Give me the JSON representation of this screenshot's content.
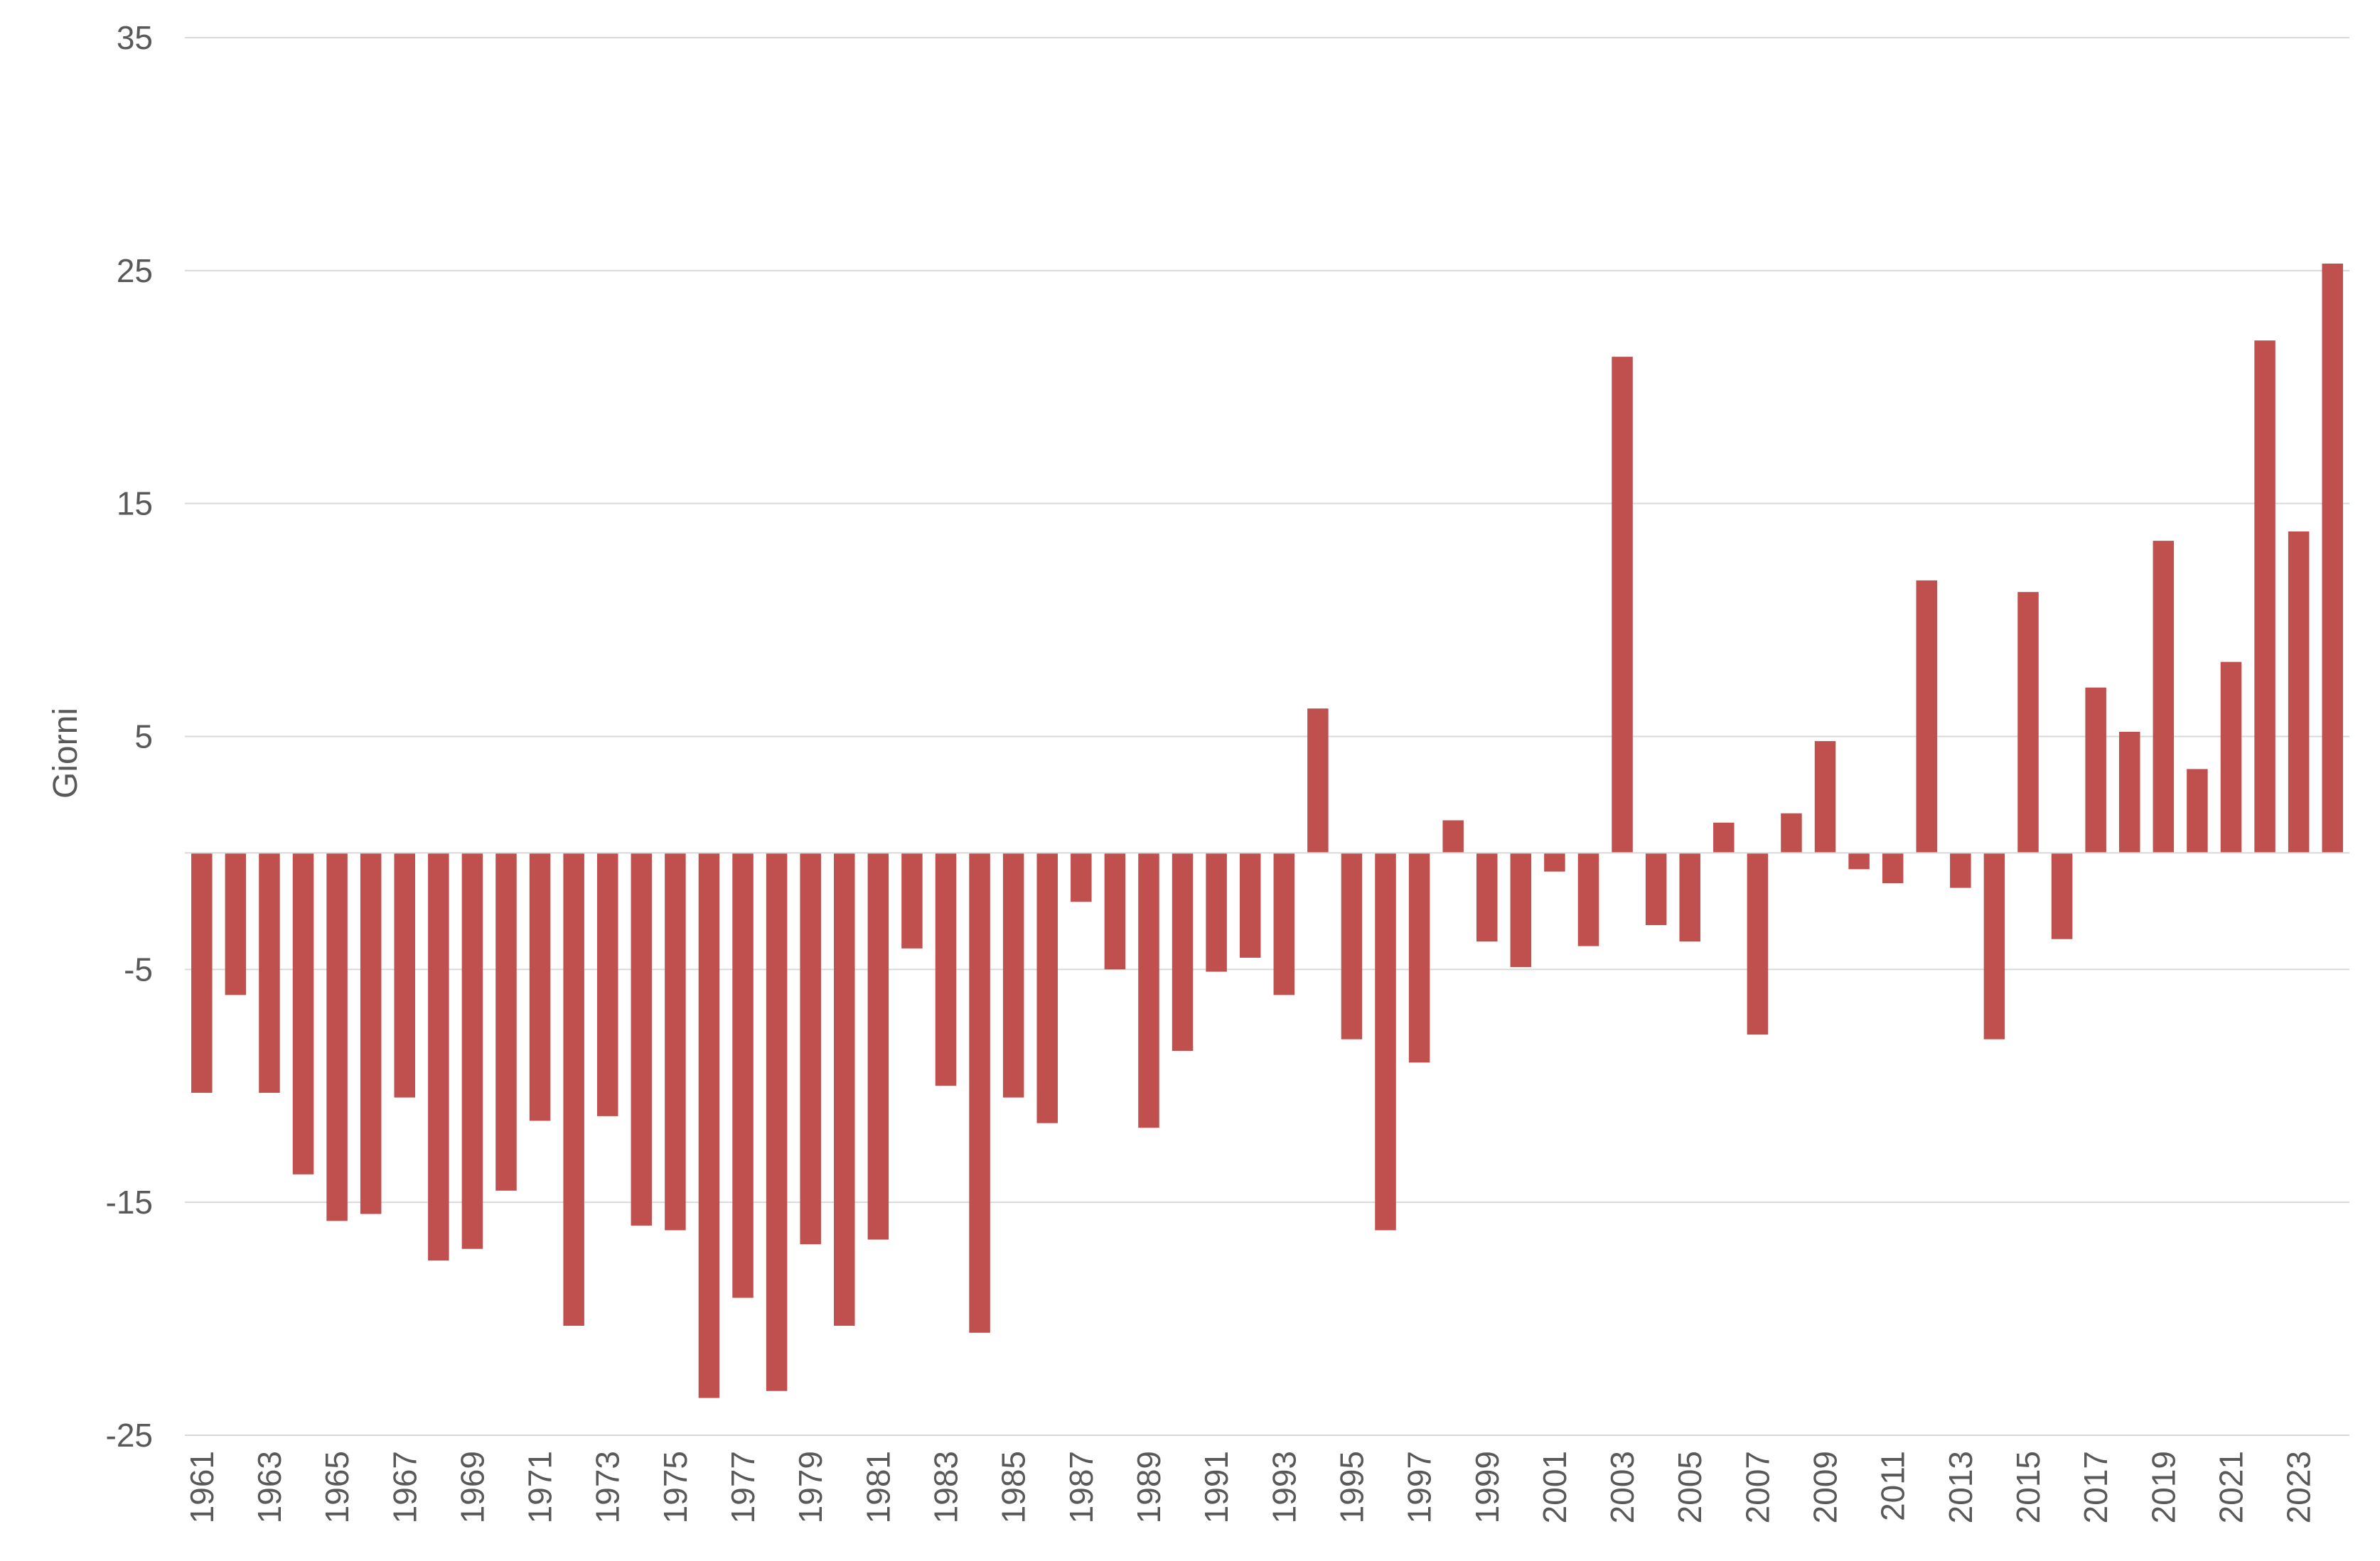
{
  "chart_data": {
    "type": "bar",
    "title": "",
    "xlabel": "",
    "ylabel": "Giorni",
    "ylim": [
      -25,
      35
    ],
    "yticks": [
      35,
      25,
      15,
      5,
      -5,
      -15,
      -25
    ],
    "grid": true,
    "legend": "none",
    "bar_color": "#C0504D",
    "grid_color": "#D9D9D9",
    "categories": [
      "1961",
      "1962",
      "1963",
      "1964",
      "1965",
      "1966",
      "1967",
      "1968",
      "1969",
      "1970",
      "1971",
      "1972",
      "1973",
      "1974",
      "1975",
      "1976",
      "1977",
      "1978",
      "1979",
      "1980",
      "1981",
      "1982",
      "1983",
      "1984",
      "1985",
      "1986",
      "1987",
      "1988",
      "1989",
      "1990",
      "1991",
      "1992",
      "1993",
      "1994",
      "1995",
      "1996",
      "1997",
      "1998",
      "1999",
      "2000",
      "2001",
      "2002",
      "2003",
      "2004",
      "2005",
      "2006",
      "2007",
      "2008",
      "2009",
      "2010",
      "2011",
      "2012",
      "2013",
      "2014",
      "2015",
      "2016",
      "2017",
      "2018",
      "2019",
      "2020",
      "2021",
      "2022",
      "2023",
      "2024"
    ],
    "x_tick_labels": [
      "1961",
      "1963",
      "1965",
      "1967",
      "1969",
      "1971",
      "1973",
      "1975",
      "1977",
      "1979",
      "1981",
      "1983",
      "1985",
      "1987",
      "1989",
      "1991",
      "1993",
      "1995",
      "1997",
      "1999",
      "2001",
      "2003",
      "2005",
      "2007",
      "2009",
      "2011",
      "2013",
      "2015",
      "2017",
      "2019",
      "2021",
      "2023"
    ],
    "values": [
      -10.3,
      -6.1,
      -10.3,
      -13.8,
      -15.8,
      -15.5,
      -10.5,
      -17.5,
      -17.0,
      -14.5,
      -11.5,
      -20.3,
      -11.3,
      -16.0,
      -16.2,
      -23.4,
      -19.1,
      -23.1,
      -16.8,
      -20.3,
      -16.6,
      -4.1,
      -10.0,
      -20.6,
      -10.5,
      -11.6,
      -2.1,
      -5.0,
      -11.8,
      -8.5,
      -5.1,
      -4.5,
      -6.1,
      6.2,
      -8.0,
      -16.2,
      -9.0,
      1.4,
      -3.8,
      -4.9,
      -0.8,
      -4.0,
      21.3,
      -3.1,
      -3.8,
      1.3,
      -7.8,
      1.7,
      4.8,
      -0.7,
      -1.3,
      11.7,
      -1.5,
      -8.0,
      11.2,
      -3.7,
      7.1,
      5.2,
      13.4,
      3.6,
      8.2,
      22.0,
      13.8,
      25.3
    ]
  }
}
